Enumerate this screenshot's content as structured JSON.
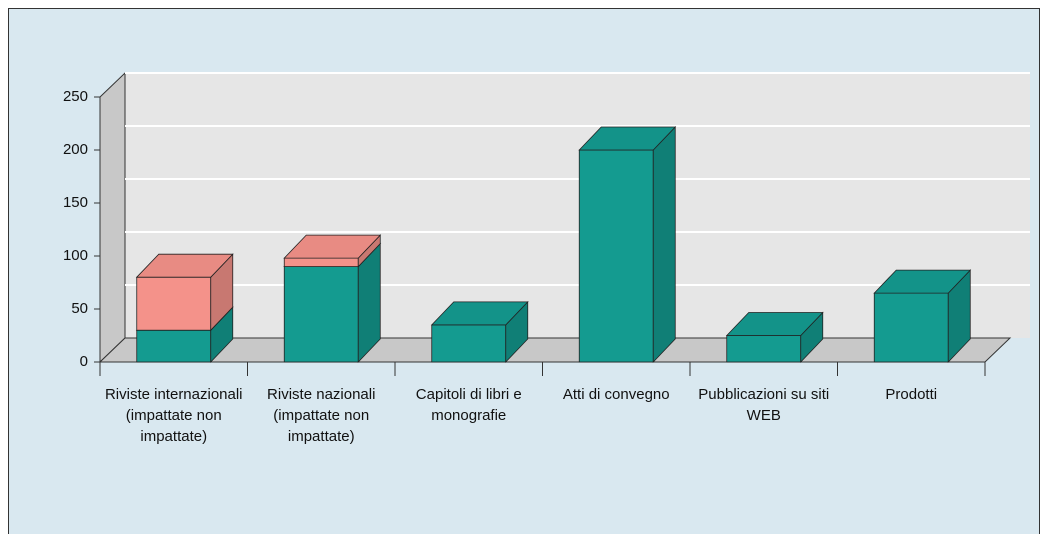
{
  "chart_data": {
    "type": "bar",
    "stacked": true,
    "categories": [
      "Riviste internazionali (impattate non impattate)",
      "Riviste nazionali (impattate non impattate)",
      "Capitoli di libri e monografie",
      "Atti di convegno",
      "Pubblicazioni su siti WEB",
      "Prodotti"
    ],
    "series": [
      {
        "color": "#149b90",
        "values": [
          30,
          90,
          35,
          200,
          25,
          65
        ]
      },
      {
        "color": "#f4928a",
        "values": [
          50,
          8,
          0,
          0,
          0,
          0
        ]
      }
    ],
    "ylim": [
      0,
      250
    ],
    "yticks": [
      0,
      50,
      100,
      150,
      200,
      250
    ],
    "grid": true
  }
}
